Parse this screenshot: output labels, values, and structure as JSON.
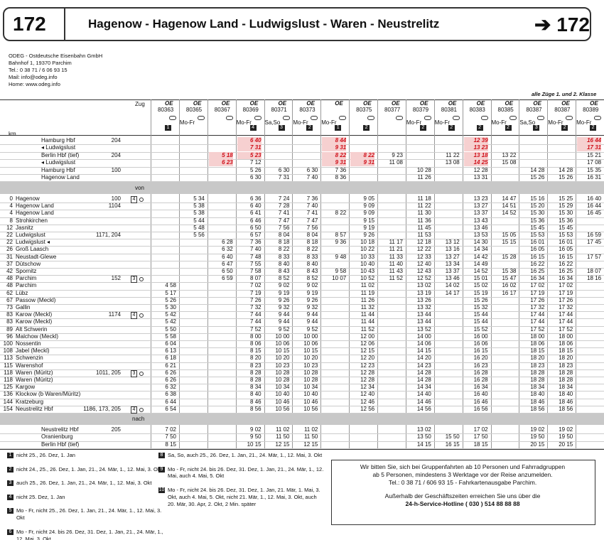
{
  "header": {
    "line": "172",
    "title": "Hagenow - Hagenow Land - Ludwigslust - Waren - Neustrelitz",
    "next": "➔ 172"
  },
  "operator": [
    "ODEG - Ostdeutsche Eisenbahn GmbH",
    "Bahnhof 1, 19370 Parchim",
    "Tel.: 0 38 71 / 6 06 93 15",
    "Mail: info@odeg.info",
    "Home: www.odeg.info"
  ],
  "class_note": "alle Züge 1. und 2. Klasse",
  "labels": {
    "zug": "Zug",
    "km": "km",
    "von": "von",
    "nach": "nach"
  },
  "columns": [
    {
      "op": "OE",
      "number": "80363",
      "note": "1"
    },
    {
      "op": "OE",
      "number": "80365",
      "days": "Mo-Fr"
    },
    {
      "op": "OE",
      "number": "80367"
    },
    {
      "op": "OE",
      "number": "80369",
      "days": "Mo-Fr",
      "note": "4"
    },
    {
      "op": "OE",
      "number": "80371",
      "days": "Sa,So",
      "note": "3"
    },
    {
      "op": "OE",
      "number": "80373",
      "days": "Mo-Fr",
      "note": "2"
    },
    {
      "op": "OE",
      "days": "Mo-Fr",
      "note": "1"
    },
    {
      "op": "OE",
      "number": "80375",
      "note": "2"
    },
    {
      "op": "OE",
      "number": "80377"
    },
    {
      "op": "OE",
      "number": "80379",
      "days": "Mo-Fr",
      "note": "2"
    },
    {
      "op": "OE",
      "number": "80381",
      "days": "Mo-Fr",
      "note": "2"
    },
    {
      "op": "OE",
      "number": "80383",
      "note": "2"
    },
    {
      "op": "OE",
      "number": "80385",
      "days": "Mo-Fr",
      "note": "2"
    },
    {
      "op": "OE",
      "number": "80387",
      "days": "Sa,So",
      "note": "3"
    },
    {
      "op": "OE",
      "number": "80387",
      "days": "Mo-Fr",
      "note": "2"
    },
    {
      "op": "OE",
      "number": "80389",
      "days": "Mo-Fr",
      "note": "2"
    }
  ],
  "from": [
    {
      "station": "Hamburg Hbf",
      "ref": "204",
      "times": [
        null,
        null,
        null,
        "6 40",
        null,
        null,
        "8 44",
        null,
        null,
        null,
        null,
        "12 39",
        null,
        null,
        null,
        "16 44"
      ],
      "red": [
        3,
        6,
        11,
        15
      ]
    },
    {
      "station": "◂ Ludwigslust",
      "times": [
        null,
        null,
        null,
        "7 31",
        null,
        null,
        "9 31",
        null,
        null,
        null,
        null,
        "13 23",
        null,
        null,
        null,
        "17 31"
      ],
      "red": [
        3,
        6,
        11,
        15
      ]
    },
    {
      "station": "Berlin Hbf (tief)",
      "ref": "204",
      "times": [
        null,
        null,
        "5 18",
        "5 23",
        null,
        null,
        "8 22",
        "8 22",
        "9 23",
        null,
        "11 22",
        "13 18",
        "13 22",
        null,
        null,
        "15 21"
      ],
      "red": [
        2,
        3,
        6,
        7,
        11
      ]
    },
    {
      "station": "◂ Ludwigslust",
      "times": [
        null,
        null,
        "6 23",
        "7 12",
        null,
        null,
        "9 31",
        "9 31",
        "11 08",
        null,
        "13 08",
        "14 25",
        "15 08",
        null,
        null,
        "17 08"
      ],
      "red": [
        2,
        6,
        7,
        11
      ]
    },
    {
      "station": "Hamburg Hbf",
      "ref": "100",
      "times": [
        null,
        null,
        null,
        "5 26",
        "6 30",
        "6 30",
        "7 36",
        null,
        null,
        "10 28",
        null,
        "12 28",
        null,
        "14 28",
        "14 28",
        "15 35"
      ]
    },
    {
      "station": "Hagenow Land",
      "times": [
        null,
        null,
        null,
        "6 30",
        "7 31",
        "7 40",
        "8 36",
        null,
        null,
        "11 26",
        null,
        "13 31",
        null,
        "15 26",
        "15 26",
        "16 31"
      ]
    }
  ],
  "main": [
    {
      "km": 0,
      "station": "Hagenow",
      "ref": "100",
      "box": "4",
      "times": [
        null,
        "5 34",
        null,
        "6 36",
        "7 24",
        "7 36",
        null,
        "9 05",
        null,
        "11 18",
        null,
        "13 23",
        "14 47",
        "15 16",
        "15 25",
        "16 40"
      ]
    },
    {
      "km": 4,
      "station": "Hagenow Land",
      "ref": "1104",
      "times": [
        null,
        "5 38",
        null,
        "6 40",
        "7 28",
        "7 40",
        null,
        "9 09",
        null,
        "11 22",
        null,
        "13 27",
        "14 51",
        "15 20",
        "15 29",
        "16 44"
      ]
    },
    {
      "km": 4,
      "station": "Hagenow Land",
      "times": [
        null,
        "5 38",
        null,
        "6 41",
        "7 41",
        "7 41",
        "8 22",
        "9 09",
        null,
        "11 30",
        null,
        "13 37",
        "14 52",
        "15 30",
        "15 30",
        "16 45"
      ]
    },
    {
      "km": 8,
      "station": "Strohkirchen",
      "times": [
        null,
        "5 44",
        null,
        "6 46",
        "7 47",
        "7 47",
        null,
        "9 15",
        null,
        "11 36",
        null,
        "13 43",
        null,
        "15 36",
        "15 36",
        null
      ]
    },
    {
      "km": 12,
      "station": "Jasnitz",
      "times": [
        null,
        "5 48",
        null,
        "6 50",
        "7 56",
        "7 56",
        null,
        "9 19",
        null,
        "11 45",
        null,
        "13 46",
        null,
        "15 45",
        "15 45",
        null
      ]
    },
    {
      "km": 22,
      "station": "Ludwigslust",
      "ref": "1171, 204",
      "times": [
        null,
        "5 56",
        null,
        "6 57",
        "8 04",
        "8 04",
        "8 57",
        "9 26",
        null,
        "11 53",
        null,
        "13 53",
        "15 05",
        "15 53",
        "15 53",
        "16 59"
      ]
    },
    {
      "km": 22,
      "station": "Ludwigslust ◂",
      "times": [
        null,
        null,
        "6 28",
        "7 36",
        "8 18",
        "8 18",
        "9 36",
        "10 18",
        "11 17",
        "12 18",
        "13 12",
        "14 30",
        "15 15",
        "16 01",
        "16 01",
        "17 45"
      ]
    },
    {
      "km": 26,
      "station": "Groß Laasch",
      "times": [
        null,
        null,
        "6 32",
        "7 40",
        "8 22",
        "8 22",
        null,
        "10 22",
        "11 21",
        "12 22",
        "13 16",
        "14 34",
        null,
        "16 05",
        "16 05",
        null
      ]
    },
    {
      "km": 31,
      "station": "Neustadt-Glewe",
      "times": [
        null,
        null,
        "6 40",
        "7 48",
        "8 33",
        "8 33",
        "9 48",
        "10 33",
        "11 33",
        "12 33",
        "13 27",
        "14 42",
        "15 28",
        "16 15",
        "16 15",
        "17 57"
      ]
    },
    {
      "km": 37,
      "station": "Dütschow",
      "times": [
        null,
        null,
        "6 47",
        "7 55",
        "8 40",
        "8 40",
        null,
        "10 40",
        "11 40",
        "12 40",
        "13 34",
        "14 49",
        null,
        "16 22",
        "16 22",
        null
      ]
    },
    {
      "km": 42,
      "station": "Spornitz",
      "times": [
        null,
        null,
        "6 50",
        "7 58",
        "8 43",
        "8 43",
        "9 58",
        "10 43",
        "11 43",
        "12 43",
        "13 37",
        "14 52",
        "15 38",
        "16 25",
        "16 25",
        "18 07"
      ]
    },
    {
      "km": 48,
      "station": "Parchim",
      "ref": "152",
      "box": "3",
      "times": [
        null,
        null,
        "6 59",
        "8 07",
        "8 52",
        "8 52",
        "10 07",
        "10 52",
        "11 52",
        "12 52",
        "13 46",
        "15 01",
        "15 47",
        "16 34",
        "16 34",
        "18 16"
      ]
    },
    {
      "km": 48,
      "station": "Parchim",
      "times": [
        "4 58",
        null,
        null,
        "7 02",
        "9 02",
        "9 02",
        null,
        "11 02",
        null,
        "13 02",
        "14 02",
        "15 02",
        "16 02",
        "17 02",
        "17 02",
        null
      ]
    },
    {
      "km": 62,
      "station": "Lübz",
      "times": [
        "5 17",
        null,
        null,
        "7 19",
        "9 19",
        "9 19",
        null,
        "11 19",
        null,
        "13 19",
        "14 17",
        "15 19",
        "16 17",
        "17 19",
        "17 19",
        null
      ]
    },
    {
      "km": 67,
      "station": "Passow (Meckl)",
      "times": [
        "5 26",
        null,
        null,
        "7 26",
        "9 26",
        "9 26",
        null,
        "11 26",
        null,
        "13 26",
        null,
        "15 26",
        null,
        "17 26",
        "17 26",
        null
      ]
    },
    {
      "km": 73,
      "station": "Gallin",
      "times": [
        "5 30",
        null,
        null,
        "7 32",
        "9 32",
        "9 32",
        null,
        "11 32",
        null,
        "13 32",
        null,
        "15 32",
        null,
        "17 32",
        "17 32",
        null
      ]
    },
    {
      "km": 83,
      "station": "Karow (Meckl)",
      "ref": "1174",
      "box": "4",
      "times": [
        "5 42",
        null,
        null,
        "7 44",
        "9 44",
        "9 44",
        null,
        "11 44",
        null,
        "13 44",
        null,
        "15 44",
        null,
        "17 44",
        "17 44",
        null
      ]
    },
    {
      "km": 83,
      "station": "Karow (Meckl)",
      "times": [
        "5 42",
        null,
        null,
        "7 44",
        "9 44",
        "9 44",
        null,
        "11 44",
        null,
        "13 44",
        null,
        "15 44",
        null,
        "17 44",
        "17 44",
        null
      ]
    },
    {
      "km": 89,
      "station": "Alt Schwerin",
      "times": [
        "5 50",
        null,
        null,
        "7 52",
        "9 52",
        "9 52",
        null,
        "11 52",
        null,
        "13 52",
        null,
        "15 52",
        null,
        "17 52",
        "17 52",
        null
      ]
    },
    {
      "km": 96,
      "station": "Malchow (Meckl)",
      "times": [
        "5 58",
        null,
        null,
        "8 00",
        "10 00",
        "10 00",
        null,
        "12 00",
        null,
        "14 00",
        null,
        "16 00",
        null,
        "18 00",
        "18 00",
        null
      ]
    },
    {
      "km": 100,
      "station": "Nossentin",
      "times": [
        "6 04",
        null,
        null,
        "8 06",
        "10 06",
        "10 06",
        null,
        "12 06",
        null,
        "14 06",
        null,
        "16 06",
        null,
        "18 06",
        "18 06",
        null
      ]
    },
    {
      "km": 108,
      "station": "Jabel (Meckl)",
      "times": [
        "6 13",
        null,
        null,
        "8 15",
        "10 15",
        "10 15",
        null,
        "12 15",
        null,
        "14 15",
        null,
        "16 15",
        null,
        "18 15",
        "18 15",
        null
      ]
    },
    {
      "km": 113,
      "station": "Schwenzin",
      "times": [
        "6 18",
        null,
        null,
        "8 20",
        "10 20",
        "10 20",
        null,
        "12 20",
        null,
        "14 20",
        null,
        "16 20",
        null,
        "18 20",
        "18 20",
        null
      ]
    },
    {
      "km": 115,
      "station": "Warenshof",
      "times": [
        "6 21",
        null,
        null,
        "8 23",
        "10 23",
        "10 23",
        null,
        "12 23",
        null,
        "14 23",
        null,
        "16 23",
        null,
        "18 23",
        "18 23",
        null
      ]
    },
    {
      "km": 118,
      "station": "Waren (Müritz)",
      "ref": "1011, 205",
      "box": "3",
      "times": [
        "6 26",
        null,
        null,
        "8 28",
        "10 28",
        "10 28",
        null,
        "12 28",
        null,
        "14 28",
        null,
        "16 28",
        null,
        "18 28",
        "18 28",
        null
      ]
    },
    {
      "km": 118,
      "station": "Waren (Müritz)",
      "times": [
        "6 26",
        null,
        null,
        "8 28",
        "10 28",
        "10 28",
        null,
        "12 28",
        null,
        "14 28",
        null,
        "16 28",
        null,
        "18 28",
        "18 28",
        null
      ]
    },
    {
      "km": 125,
      "station": "Kargow",
      "times": [
        "6 32",
        null,
        null,
        "8 34",
        "10 34",
        "10 34",
        null,
        "12 34",
        null,
        "14 34",
        null,
        "16 34",
        null,
        "18 34",
        "18 34",
        null
      ]
    },
    {
      "km": 136,
      "station": "Klockow (b Waren/Müritz)",
      "times": [
        "6 38",
        null,
        null,
        "8 40",
        "10 40",
        "10 40",
        null,
        "12 40",
        null,
        "14 40",
        null,
        "16 40",
        null,
        "18 40",
        "18 40",
        null
      ]
    },
    {
      "km": 144,
      "station": "Kratzeburg",
      "times": [
        "6 44",
        null,
        null,
        "8 46",
        "10 46",
        "10 46",
        null,
        "12 46",
        null,
        "14 46",
        null,
        "16 46",
        null,
        "18 46",
        "18 46",
        null
      ]
    },
    {
      "km": 154,
      "station": "Neustrelitz Hbf",
      "ref": "1186, 173, 205",
      "box": "4",
      "times": [
        "6 54",
        null,
        null,
        "8 56",
        "10 56",
        "10 56",
        null,
        "12 56",
        null,
        "14 56",
        null,
        "16 56",
        null,
        "18 56",
        "18 56",
        null
      ]
    }
  ],
  "to": [
    {
      "station": "Neustrelitz Hbf",
      "ref": "205",
      "times": [
        "7 02",
        null,
        null,
        "9 02",
        "11 02",
        "11 02",
        null,
        null,
        null,
        "13 02",
        null,
        "17 02",
        null,
        "19 02",
        "19 02",
        null
      ]
    },
    {
      "station": "Oranienburg",
      "times": [
        "7 50",
        null,
        null,
        "9 50",
        "11 50",
        "11 50",
        null,
        null,
        null,
        "13 50",
        "15 50",
        "17 50",
        null,
        "19 50",
        "19 50",
        null
      ]
    },
    {
      "station": "Berlin Hbf (tief)",
      "times": [
        "8 15",
        null,
        null,
        "10 15",
        "12 15",
        "12 15",
        null,
        null,
        null,
        "14 15",
        "16 15",
        "18 15",
        null,
        "20 15",
        "20 15",
        null
      ]
    }
  ],
  "footnotes_left": [
    {
      "nr": "1",
      "text": "nicht 25., 26. Dez, 1. Jan"
    },
    {
      "nr": "2",
      "text": "nicht 24., 25., 26. Dez, 1. Jan, 21., 24. Mär, 1., 12. Mai, 3. Okt"
    },
    {
      "nr": "3",
      "text": "auch 25., 26. Dez, 1. Jan, 21., 24. Mär, 1., 12. Mai, 3. Okt"
    },
    {
      "nr": "4",
      "text": "nicht 25. Dez, 1. Jan"
    },
    {
      "nr": "5",
      "text": "Mo - Fr, nicht 25., 26. Dez, 1. Jan, 21., 24. Mär, 1., 12. Mai, 3. Okt"
    },
    {
      "nr": "6",
      "text": "Mo - Fr, nicht 24. bis 26. Dez, 31. Dez, 1. Jan, 21., 24. Mär, 1., 12. Mai, 3. Okt"
    }
  ],
  "footnotes_right": [
    {
      "nr": "8",
      "text": "Sa, So, auch 25., 26. Dez, 1. Jan, 21., 24. Mär, 1., 12. Mai, 3. Okt"
    },
    {
      "nr": "9",
      "text": "Mo - Fr, nicht 24. bis 26. Dez, 31. Dez, 1. Jan, 21., 24. Mär, 1., 12. Mai, auch 4. Mai, 5. Okt"
    },
    {
      "nr": "10",
      "text": "Mo - Fr, nicht 24. bis 26. Dez, 31. Dez, 1. Jan, 21. Mär, 1. Mai, 3. Okt, auch 4. Mai, 5. Okt, nicht 21. Mär, 1., 12. Mai, 3. Okt, auch 20. Mär, 30. Apr, 2. Okt, 2 Min. später"
    }
  ],
  "info_box": [
    "Wir bitten Sie, sich bei Gruppenfahrten ab 10 Personen und Fahrradgruppen",
    "ab 5 Personen, mindestens 3 Werktage vor der Reise anzumelden.",
    "Tel.: 0 38 71 / 606 93 15 - Fahrkartenausgabe Parchim.",
    "Außerhalb der Geschäftszeiten erreichen Sie uns über die",
    "24-h-Service-Hotline ( 030 ) 514 88 88 88"
  ]
}
